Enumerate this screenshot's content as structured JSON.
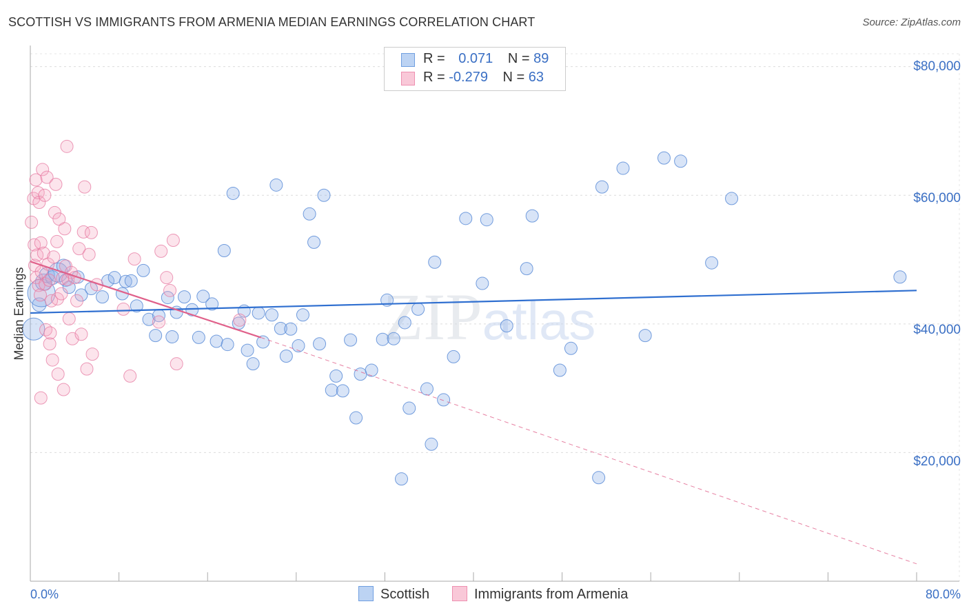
{
  "title": "SCOTTISH VS IMMIGRANTS FROM ARMENIA MEDIAN EARNINGS CORRELATION CHART",
  "source": "Source: ZipAtlas.com",
  "watermark": "ZIPatlas",
  "legend_top": [
    {
      "r_label": "R = ",
      "r_value": "0.071",
      "n_label": "N = ",
      "n_value": "89"
    },
    {
      "r_label": "R = ",
      "r_value": "-0.279",
      "n_label": "N = ",
      "n_value": "63"
    }
  ],
  "colors": {
    "scottish": "#8fb3e8",
    "scottish_line": "#2f6fd0",
    "armenia": "#f4a6c0",
    "armenia_line": "#e0608a",
    "accent": "#3a6fc4"
  },
  "chart_data": {
    "type": "scatter",
    "title": "SCOTTISH VS IMMIGRANTS FROM ARMENIA MEDIAN EARNINGS CORRELATION CHART",
    "xlabel_min": "0.0%",
    "xlabel_max": "80.0%",
    "ylabel": "Median Earnings",
    "xlim": [
      0,
      80
    ],
    "ylim": [
      0,
      82000
    ],
    "y_ticks": [
      20000,
      40000,
      60000,
      80000
    ],
    "y_tick_labels": [
      "$20,000",
      "$40,000",
      "$60,000",
      "$80,000"
    ],
    "series": [
      {
        "name": "Scottish",
        "r": 0.071,
        "n": 89,
        "trend": {
          "x0": 0,
          "y0": 41700,
          "x1": 80,
          "y1": 45200
        },
        "points": [
          [
            0.3,
            39200,
            16
          ],
          [
            0.8,
            43000,
            10
          ],
          [
            1.0,
            44800,
            20
          ],
          [
            1.2,
            46500,
            12
          ],
          [
            1.5,
            47600,
            11
          ],
          [
            2.0,
            47200,
            10
          ],
          [
            2.5,
            48000,
            14
          ],
          [
            3.0,
            49000,
            10
          ],
          [
            3.2,
            46800,
            9
          ],
          [
            3.5,
            45700,
            9
          ],
          [
            4.3,
            47300,
            9
          ],
          [
            4.6,
            44500,
            9
          ],
          [
            5.5,
            45500,
            9
          ],
          [
            6.5,
            44200,
            9
          ],
          [
            7.0,
            46700,
            9
          ],
          [
            7.6,
            47200,
            9
          ],
          [
            8.3,
            44700,
            9
          ],
          [
            8.6,
            46600,
            9
          ],
          [
            9.1,
            46700,
            9
          ],
          [
            9.6,
            42800,
            9
          ],
          [
            10.2,
            48300,
            9
          ],
          [
            10.7,
            40700,
            9
          ],
          [
            11.3,
            38200,
            9
          ],
          [
            11.6,
            41300,
            9
          ],
          [
            12.4,
            44100,
            9
          ],
          [
            12.8,
            38000,
            9
          ],
          [
            13.2,
            41800,
            9
          ],
          [
            13.9,
            44200,
            9
          ],
          [
            14.6,
            42200,
            9
          ],
          [
            15.2,
            37900,
            9
          ],
          [
            15.6,
            44300,
            9
          ],
          [
            16.4,
            43100,
            9
          ],
          [
            16.8,
            37300,
            9
          ],
          [
            17.5,
            51400,
            9
          ],
          [
            17.8,
            36800,
            9
          ],
          [
            18.3,
            60300,
            9
          ],
          [
            18.8,
            40100,
            9
          ],
          [
            19.3,
            42000,
            9
          ],
          [
            19.6,
            35900,
            9
          ],
          [
            20.1,
            33800,
            9
          ],
          [
            20.6,
            41700,
            9
          ],
          [
            21.0,
            37200,
            9
          ],
          [
            21.8,
            41400,
            9
          ],
          [
            22.2,
            61600,
            9
          ],
          [
            22.6,
            39300,
            9
          ],
          [
            23.1,
            35000,
            9
          ],
          [
            23.5,
            39200,
            9
          ],
          [
            24.2,
            36600,
            9
          ],
          [
            24.6,
            41400,
            9
          ],
          [
            25.2,
            57100,
            9
          ],
          [
            25.6,
            52700,
            9
          ],
          [
            26.1,
            36900,
            9
          ],
          [
            26.5,
            60000,
            9
          ],
          [
            27.2,
            29700,
            9
          ],
          [
            27.6,
            31900,
            9
          ],
          [
            28.2,
            29600,
            9
          ],
          [
            28.9,
            37500,
            9
          ],
          [
            29.4,
            25400,
            9
          ],
          [
            29.8,
            32200,
            9
          ],
          [
            30.8,
            32800,
            9
          ],
          [
            31.8,
            37600,
            9
          ],
          [
            32.2,
            43700,
            9
          ],
          [
            32.8,
            37700,
            9
          ],
          [
            33.5,
            15900,
            9
          ],
          [
            33.8,
            40200,
            9
          ],
          [
            34.2,
            26900,
            9
          ],
          [
            35.0,
            42300,
            9
          ],
          [
            35.8,
            29900,
            9
          ],
          [
            36.2,
            21300,
            9
          ],
          [
            36.5,
            49600,
            9
          ],
          [
            37.3,
            28200,
            9
          ],
          [
            38.2,
            34900,
            9
          ],
          [
            39.3,
            56400,
            9
          ],
          [
            40.8,
            46300,
            9
          ],
          [
            41.2,
            56200,
            9
          ],
          [
            43.0,
            39700,
            9
          ],
          [
            44.8,
            48600,
            9
          ],
          [
            45.3,
            56800,
            9
          ],
          [
            47.8,
            32800,
            9
          ],
          [
            48.8,
            36200,
            9
          ],
          [
            51.3,
            16100,
            9
          ],
          [
            51.6,
            61300,
            9
          ],
          [
            53.5,
            64200,
            9
          ],
          [
            55.5,
            38200,
            9
          ],
          [
            57.2,
            65800,
            9
          ],
          [
            58.7,
            65300,
            9
          ],
          [
            61.5,
            49500,
            9
          ],
          [
            63.3,
            59500,
            9
          ],
          [
            78.5,
            47300,
            9
          ]
        ]
      },
      {
        "name": "Immigrants from Armenia",
        "r": -0.279,
        "n": 63,
        "trend": {
          "x0": 0,
          "y0": 49700,
          "x1": 20.8,
          "y1": 37900
        },
        "trend_ext": {
          "x0": 20.8,
          "y0": 37900,
          "x1": 80,
          "y1": 2700
        },
        "points": [
          [
            0.1,
            55800,
            9
          ],
          [
            0.3,
            59500,
            9
          ],
          [
            0.35,
            52300,
            9
          ],
          [
            0.4,
            49100,
            9
          ],
          [
            0.5,
            62400,
            9
          ],
          [
            0.55,
            47200,
            9
          ],
          [
            0.6,
            50700,
            9
          ],
          [
            0.7,
            60400,
            9
          ],
          [
            0.75,
            46000,
            9
          ],
          [
            0.8,
            58900,
            9
          ],
          [
            0.9,
            44500,
            9
          ],
          [
            0.95,
            52600,
            9
          ],
          [
            1.0,
            48100,
            9
          ],
          [
            1.1,
            64000,
            9
          ],
          [
            1.2,
            51000,
            9
          ],
          [
            1.3,
            60000,
            9
          ],
          [
            1.35,
            46200,
            9
          ],
          [
            1.4,
            39100,
            9
          ],
          [
            1.5,
            62800,
            9
          ],
          [
            1.6,
            49300,
            9
          ],
          [
            1.7,
            46800,
            9
          ],
          [
            1.75,
            36900,
            9
          ],
          [
            1.8,
            38600,
            9
          ],
          [
            1.9,
            43600,
            9
          ],
          [
            2.0,
            34400,
            9
          ],
          [
            2.1,
            50400,
            9
          ],
          [
            2.2,
            57300,
            9
          ],
          [
            2.3,
            61700,
            9
          ],
          [
            2.4,
            52800,
            9
          ],
          [
            2.45,
            43900,
            9
          ],
          [
            2.5,
            32200,
            9
          ],
          [
            2.6,
            56300,
            9
          ],
          [
            2.8,
            44700,
            9
          ],
          [
            2.9,
            47100,
            9
          ],
          [
            3.0,
            29800,
            9
          ],
          [
            3.1,
            54800,
            9
          ],
          [
            3.2,
            49000,
            9
          ],
          [
            3.3,
            67600,
            9
          ],
          [
            3.4,
            46900,
            9
          ],
          [
            3.5,
            40800,
            9
          ],
          [
            3.7,
            48000,
            9
          ],
          [
            3.8,
            37700,
            9
          ],
          [
            4.0,
            47200,
            9
          ],
          [
            4.2,
            43600,
            9
          ],
          [
            4.4,
            51700,
            9
          ],
          [
            4.6,
            38400,
            9
          ],
          [
            4.8,
            54300,
            9
          ],
          [
            4.9,
            61300,
            9
          ],
          [
            5.1,
            33000,
            9
          ],
          [
            5.3,
            50800,
            9
          ],
          [
            5.5,
            54200,
            9
          ],
          [
            5.6,
            35300,
            9
          ],
          [
            6.0,
            46100,
            9
          ],
          [
            8.4,
            42300,
            9
          ],
          [
            9.0,
            31900,
            9
          ],
          [
            9.4,
            50100,
            9
          ],
          [
            11.6,
            40300,
            9
          ],
          [
            11.8,
            51300,
            9
          ],
          [
            12.3,
            47200,
            9
          ],
          [
            12.6,
            45200,
            9
          ],
          [
            12.9,
            53000,
            9
          ],
          [
            13.2,
            33800,
            9
          ],
          [
            18.9,
            40600,
            9
          ],
          [
            0.95,
            28500,
            9
          ]
        ]
      }
    ]
  },
  "bottom_legend": [
    "Scottish",
    "Immigrants from Armenia"
  ]
}
